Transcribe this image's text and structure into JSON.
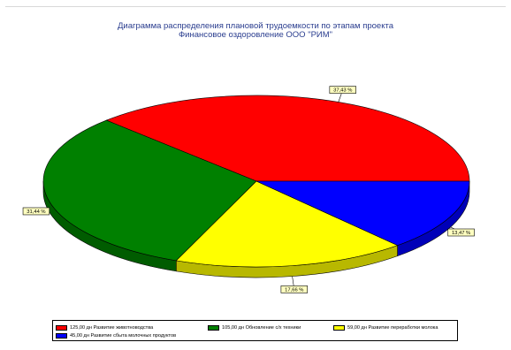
{
  "chart_data": {
    "type": "pie",
    "title": "Диаграмма распределения плановой трудоемкости по этапам проекта",
    "subtitle": "Финансовое оздоровление ООО \"РИМ\"",
    "slices": [
      {
        "name": "Развитие животноводства",
        "value": 125.0,
        "value_label": "125,00 дн",
        "percent": 37.43,
        "percent_label": "37,43 %",
        "color": "#ff0000"
      },
      {
        "name": "Обновление с/х техники",
        "value": 105.0,
        "value_label": "105,00 дн",
        "percent": 31.44,
        "percent_label": "31,44 %",
        "color": "#008000"
      },
      {
        "name": "Развитие переработки молока",
        "value": 59.0,
        "value_label": "59,00 дн",
        "percent": 17.66,
        "percent_label": "17,66 %",
        "color": "#ffff00"
      },
      {
        "name": "Развитие сбыта молочных продуктов",
        "value": 45.0,
        "value_label": "45,00 дн",
        "percent": 13.47,
        "percent_label": "13,47 %",
        "color": "#0000ff"
      }
    ],
    "legend_position": "bottom",
    "three_d": true
  }
}
